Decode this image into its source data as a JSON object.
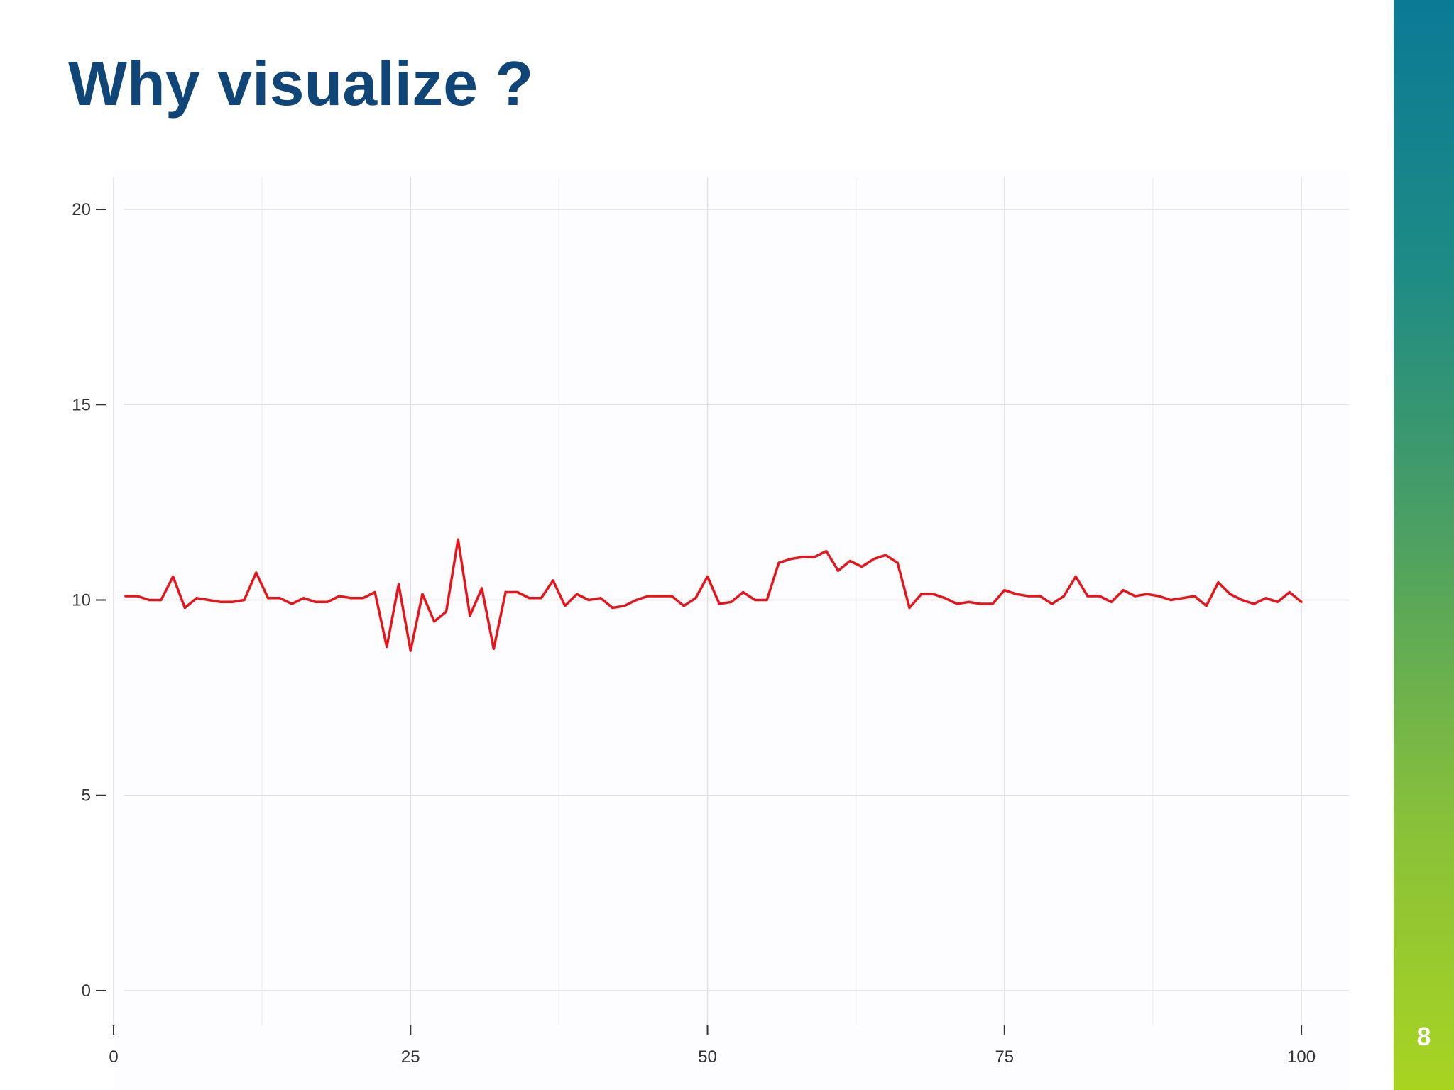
{
  "slide": {
    "title": "Why visualize ?",
    "page_number": "8"
  },
  "colors": {
    "title": "#0f4677",
    "line": "#e8141b",
    "grid": "#e0e0e0",
    "sidebar_top": "#0b7a95",
    "sidebar_bottom": "#a8d421"
  },
  "chart_data": {
    "type": "line",
    "title": "",
    "xlabel": "",
    "ylabel": "",
    "xlim": [
      0,
      104
    ],
    "ylim": [
      -0.8,
      21
    ],
    "x_ticks": [
      0,
      25,
      50,
      75,
      100
    ],
    "y_ticks": [
      0,
      5,
      10,
      15,
      20
    ],
    "grid": true,
    "series": [
      {
        "color": "#e8141b",
        "x": [
          1,
          2,
          3,
          4,
          5,
          6,
          7,
          8,
          9,
          10,
          11,
          12,
          13,
          14,
          15,
          16,
          17,
          18,
          19,
          20,
          21,
          22,
          23,
          24,
          25,
          26,
          27,
          28,
          29,
          30,
          31,
          32,
          33,
          34,
          35,
          36,
          37,
          38,
          39,
          40,
          41,
          42,
          43,
          44,
          45,
          46,
          47,
          48,
          49,
          50,
          51,
          52,
          53,
          54,
          55,
          56,
          57,
          58,
          59,
          60,
          61,
          62,
          63,
          64,
          65,
          66,
          67,
          68,
          69,
          70,
          71,
          72,
          73,
          74,
          75,
          76,
          77,
          78,
          79,
          80,
          81,
          82,
          83,
          84,
          85,
          86,
          87,
          88,
          89,
          90,
          91,
          92,
          93,
          94,
          95,
          96,
          97,
          98,
          99,
          100
        ],
        "y": [
          10.1,
          10.1,
          10.0,
          10.0,
          10.6,
          9.8,
          10.05,
          10.0,
          9.95,
          9.95,
          10.0,
          10.7,
          10.05,
          10.05,
          9.9,
          10.05,
          9.95,
          9.95,
          10.1,
          10.05,
          10.05,
          10.2,
          8.8,
          10.4,
          8.7,
          10.15,
          9.45,
          9.7,
          11.55,
          9.6,
          10.3,
          8.75,
          10.2,
          10.2,
          10.05,
          10.05,
          10.5,
          9.85,
          10.15,
          10.0,
          10.05,
          9.8,
          9.85,
          10.0,
          10.1,
          10.1,
          10.1,
          9.85,
          10.05,
          10.6,
          9.9,
          9.95,
          10.2,
          10.0,
          10.0,
          10.95,
          11.05,
          11.1,
          11.1,
          11.25,
          10.75,
          11.0,
          10.85,
          11.05,
          11.15,
          10.95,
          9.8,
          10.15,
          10.15,
          10.05,
          9.9,
          9.95,
          9.9,
          9.9,
          10.25,
          10.15,
          10.1,
          10.1,
          9.9,
          10.1,
          10.6,
          10.1,
          10.1,
          9.95,
          10.25,
          10.1,
          10.15,
          10.1,
          10.0,
          10.05,
          10.1,
          9.85,
          10.45,
          10.15,
          10.0,
          9.9,
          10.05,
          9.95,
          10.2,
          9.95
        ]
      }
    ]
  }
}
